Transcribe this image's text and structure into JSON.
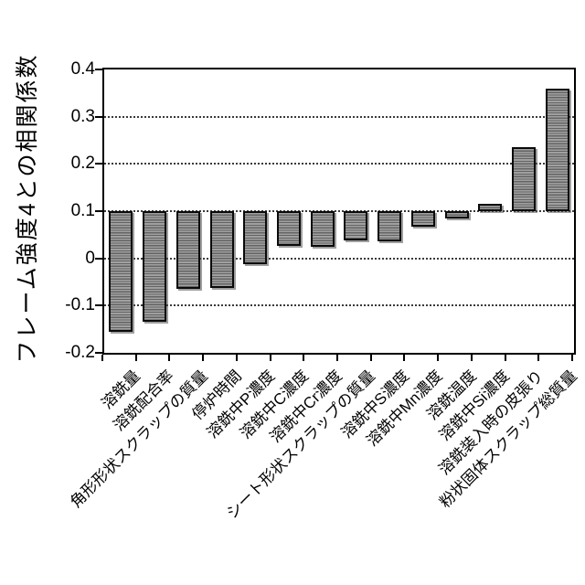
{
  "chart_data": {
    "type": "bar",
    "title": "",
    "ylabel": "フレーム強度4との相関係数",
    "xlabel": "",
    "ylim": [
      -0.2,
      0.4
    ],
    "ytick_interval": 0.1,
    "ytick_labels": [
      "0.4",
      "0.3",
      "0.2",
      "0.1",
      "0",
      "-0.1",
      "-0.2"
    ],
    "bar_base": 0.1,
    "grid": "horizontal-dotted",
    "legend_position": "none",
    "bar_fill_color": "#9a9a9a",
    "bar_hatch": "horizontal-lines",
    "bar_border_color": "#0a0a0a",
    "categories": [
      "溶銑量",
      "溶銑配合率",
      "角形形状スクラップの質量",
      "停炉時間",
      "溶銑中P濃度",
      "溶銑中C濃度",
      "溶銑中Cr濃度",
      "シート形状スクラップの質量",
      "溶銑中S濃度",
      "溶銑中Mn濃度",
      "溶銑温度",
      "溶銑中Si濃度",
      "溶銑装入時の皮張り",
      "粉状固体スクラップ総質量"
    ],
    "values": [
      -0.155,
      -0.135,
      -0.065,
      -0.063,
      -0.013,
      0.027,
      0.025,
      0.038,
      0.036,
      0.068,
      0.085,
      0.115,
      0.235,
      0.36
    ]
  }
}
